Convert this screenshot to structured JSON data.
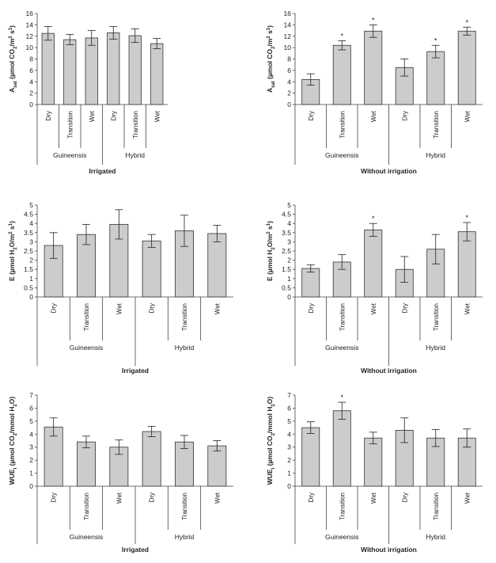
{
  "colors": {
    "bar_fill": "#cccccc",
    "bar_stroke": "#333333",
    "axis": "#444444",
    "text": "#222222"
  },
  "chart_data": [
    {
      "type": "bar",
      "ylabel": "A_sat (µmol CO2/m² s¹)",
      "ylabel_parts": [
        "A",
        "sat",
        " (µmol CO",
        "2",
        "/m",
        "2",
        " s",
        "1",
        ")"
      ],
      "ylim": [
        0,
        16
      ],
      "yticks": [
        0,
        2,
        4,
        6,
        8,
        10,
        12,
        14,
        16
      ],
      "categories": [
        "Dry",
        "Transition",
        "Wet",
        "Dry",
        "Transition",
        "Wet"
      ],
      "groups": [
        "Guineensis",
        "Hybrid"
      ],
      "title": "Irrigated",
      "values": [
        12.5,
        11.4,
        11.7,
        12.6,
        12.1,
        10.7
      ],
      "errors": [
        1.2,
        0.9,
        1.3,
        1.1,
        1.2,
        0.9
      ],
      "significant": [
        false,
        false,
        false,
        false,
        false,
        false
      ],
      "star": "*"
    },
    {
      "type": "bar",
      "ylabel": "A_sat (µmol CO2/m² s¹)",
      "ylabel_parts": [
        "A",
        "sat",
        " (µmol CO",
        "2",
        "/m",
        "2",
        " s",
        "1",
        ")"
      ],
      "ylim": [
        0,
        16
      ],
      "yticks": [
        0,
        2,
        4,
        6,
        8,
        10,
        12,
        14,
        16
      ],
      "categories": [
        "Dry",
        "Transition",
        "Wet",
        "Dry",
        "Transition",
        "Wet"
      ],
      "groups": [
        "Guineensis",
        "Hybrid"
      ],
      "title": "Without irrigation",
      "values": [
        4.4,
        10.4,
        12.9,
        6.5,
        9.3,
        12.9
      ],
      "errors": [
        1.0,
        0.8,
        1.1,
        1.5,
        1.1,
        0.7
      ],
      "significant": [
        false,
        true,
        true,
        false,
        true,
        true
      ],
      "star": "*"
    },
    {
      "type": "bar",
      "ylabel": "E (µmol H2O/m² s¹)",
      "ylabel_parts": [
        "E",
        "",
        " (µmol H",
        "2",
        "O/m",
        "2",
        " s",
        "1",
        ")"
      ],
      "ylim": [
        0,
        5
      ],
      "yticks": [
        0,
        0.5,
        1,
        1.5,
        2,
        2.5,
        3,
        3.5,
        4,
        4.5,
        5
      ],
      "categories": [
        "Dry",
        "Transition",
        "Wet",
        "Dry",
        "Transition",
        "Wet"
      ],
      "groups": [
        "Guineensis",
        "Hybrid"
      ],
      "title": "Irrigated",
      "values": [
        2.8,
        3.4,
        3.95,
        3.05,
        3.6,
        3.45
      ],
      "errors": [
        0.7,
        0.55,
        0.8,
        0.35,
        0.85,
        0.45
      ],
      "significant": [
        false,
        false,
        false,
        false,
        false,
        false
      ],
      "star": "*"
    },
    {
      "type": "bar",
      "ylabel": "E (µmol H2O/m² s¹)",
      "ylabel_parts": [
        "E",
        "",
        " (µmol H",
        "2",
        "O/m",
        "2",
        " s",
        "1",
        ")"
      ],
      "ylim": [
        0,
        5
      ],
      "yticks": [
        0,
        0.5,
        1,
        1.5,
        2,
        2.5,
        3,
        3.5,
        4,
        4.5,
        5
      ],
      "categories": [
        "Dry",
        "Transition",
        "Wet",
        "Dry",
        "Transition",
        "Wet"
      ],
      "groups": [
        "Guineensis",
        "Hybrid"
      ],
      "title": "Without irrigation",
      "values": [
        1.55,
        1.9,
        3.65,
        1.5,
        2.6,
        3.55
      ],
      "errors": [
        0.2,
        0.4,
        0.35,
        0.7,
        0.8,
        0.5
      ],
      "significant": [
        false,
        false,
        true,
        false,
        false,
        true
      ],
      "star": "*"
    },
    {
      "type": "bar",
      "ylabel": "WUE_i (µmol CO2/mmol H2O)",
      "ylabel_parts": [
        "WUE",
        "i",
        " (µmol CO",
        "2",
        "/mmol H",
        "2",
        "O)",
        "",
        ""
      ],
      "ylim": [
        0,
        7
      ],
      "yticks": [
        0,
        1,
        2,
        3,
        4,
        5,
        6,
        7
      ],
      "categories": [
        "Dry",
        "Transition",
        "Wet",
        "Dry",
        "Transition",
        "Wet"
      ],
      "groups": [
        "Guineensis",
        "Hybrid"
      ],
      "title": "Irrigated",
      "values": [
        4.55,
        3.4,
        3.0,
        4.2,
        3.4,
        3.1
      ],
      "errors": [
        0.7,
        0.45,
        0.55,
        0.4,
        0.5,
        0.4
      ],
      "significant": [
        false,
        false,
        false,
        false,
        false,
        false
      ],
      "star": "*"
    },
    {
      "type": "bar",
      "ylabel": "WUE_i (µmol CO2/mmol H2O)",
      "ylabel_parts": [
        "WUE",
        "i",
        " (µmol CO",
        "2",
        "/mmol H",
        "2",
        "O)",
        "",
        ""
      ],
      "ylim": [
        0,
        7
      ],
      "yticks": [
        0,
        1,
        2,
        3,
        4,
        5,
        6,
        7
      ],
      "categories": [
        "Dry",
        "Transition",
        "Wet",
        "Dry",
        "Transition",
        "Wet"
      ],
      "groups": [
        "Guineensis",
        "Hybrid"
      ],
      "title": "Without irrigation",
      "values": [
        4.5,
        5.8,
        3.7,
        4.3,
        3.7,
        3.7
      ],
      "errors": [
        0.45,
        0.65,
        0.45,
        0.95,
        0.65,
        0.7
      ],
      "significant": [
        false,
        true,
        false,
        false,
        false,
        false
      ],
      "star": "*"
    }
  ]
}
